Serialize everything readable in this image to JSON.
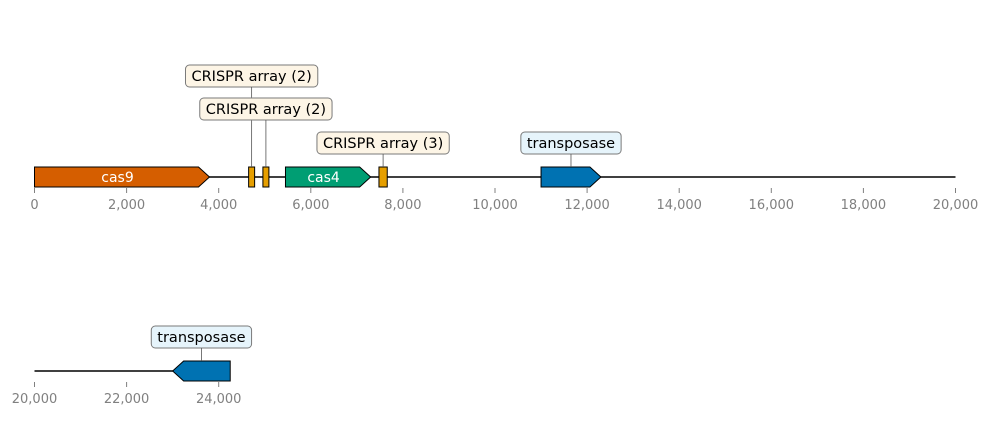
{
  "colors": {
    "cas9": "#d55e00",
    "cas4": "#009e73",
    "crispr": "#e69f00",
    "transposase": "#0072b2",
    "crispr_box": "#fdf5e6",
    "transposase_box": "#e6f4fb",
    "callout_border": "#7a7a7a",
    "axis_tick": "#808080",
    "backbone": "#000000"
  },
  "chart_data": {
    "type": "gene-map",
    "features_shown_as_labels": true,
    "rows": [
      {
        "range": [
          0,
          20000
        ],
        "ticks": [
          0,
          2000,
          4000,
          6000,
          8000,
          10000,
          12000,
          14000,
          16000,
          18000,
          20000
        ],
        "tick_labels": [
          "0",
          "2,000",
          "4,000",
          "6,000",
          "8,000",
          "10,000",
          "12,000",
          "14,000",
          "16,000",
          "18,000",
          "20,000"
        ],
        "features": [
          {
            "name": "cas9",
            "start": 0,
            "end": 3800,
            "strand": 1,
            "kind": "cas9",
            "label": "cas9",
            "label_inside": true
          },
          {
            "name": "crispr-1",
            "start": 4650,
            "end": 4780,
            "strand": 0,
            "kind": "crispr",
            "label": "CRISPR array (2)",
            "callout_level": 3
          },
          {
            "name": "crispr-2",
            "start": 4960,
            "end": 5090,
            "strand": 0,
            "kind": "crispr",
            "label": "CRISPR array (2)",
            "callout_level": 2
          },
          {
            "name": "cas4",
            "start": 5450,
            "end": 7300,
            "strand": 1,
            "kind": "cas4",
            "label": "cas4",
            "label_inside": true
          },
          {
            "name": "crispr-3",
            "start": 7480,
            "end": 7660,
            "strand": 0,
            "kind": "crispr",
            "label": "CRISPR array (3)",
            "callout_level": 1
          },
          {
            "name": "transposase-1",
            "start": 11000,
            "end": 12300,
            "strand": 1,
            "kind": "transposase",
            "label": "transposase",
            "callout_level": 1
          }
        ]
      },
      {
        "range": [
          20000,
          40000
        ],
        "ticks": [
          20000,
          22000,
          24000
        ],
        "tick_labels": [
          "20,000",
          "22,000",
          "24,000"
        ],
        "backbone_end": 24250,
        "features": [
          {
            "name": "transposase-2",
            "start": 23000,
            "end": 24250,
            "strand": -1,
            "kind": "transposase",
            "label": "transposase",
            "callout_level": 1
          }
        ]
      }
    ]
  }
}
